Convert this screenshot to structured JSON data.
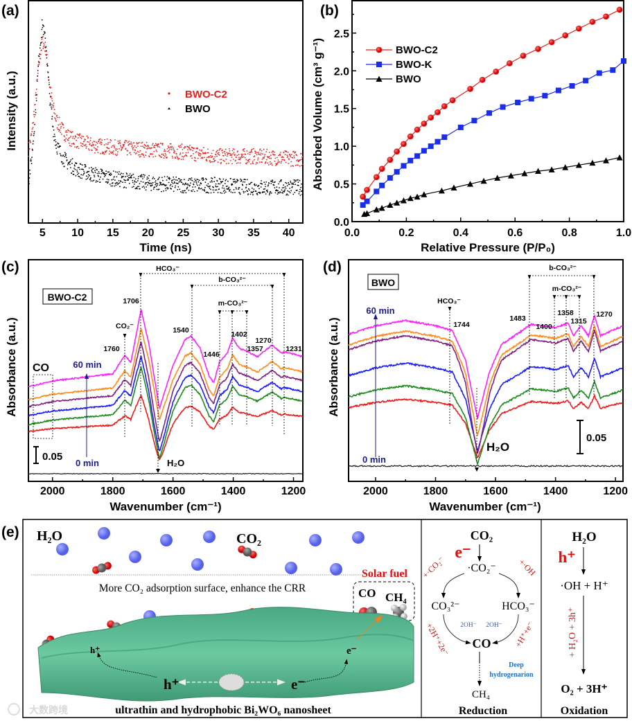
{
  "panels": {
    "a": "(a)",
    "b": "(b)",
    "c": "(c)",
    "d": "(d)",
    "e": "(e)"
  },
  "chart_data": [
    {
      "id": "a",
      "type": "scatter",
      "xlabel": "Time (ns)",
      "ylabel": "Intensity (a.u.)",
      "xlim": [
        3,
        42
      ],
      "ylim": [
        0,
        1
      ],
      "xticks": [
        5,
        10,
        15,
        20,
        25,
        30,
        35,
        40
      ],
      "legend_position": "center-right",
      "x": [
        3,
        3.5,
        4,
        4.5,
        5,
        5.5,
        6,
        6.5,
        7,
        8,
        9,
        10,
        12,
        15,
        20,
        25,
        30,
        35,
        40,
        42
      ],
      "series": [
        {
          "name": "BWO-C2",
          "color": "#e8201e",
          "values": [
            0.33,
            0.4,
            0.55,
            0.72,
            0.82,
            0.78,
            0.62,
            0.52,
            0.46,
            0.41,
            0.38,
            0.37,
            0.35,
            0.34,
            0.33,
            0.32,
            0.3,
            0.3,
            0.29,
            0.29
          ]
        },
        {
          "name": "BWO",
          "color": "#000000",
          "values": [
            0.18,
            0.3,
            0.5,
            0.75,
            0.9,
            0.8,
            0.58,
            0.43,
            0.35,
            0.29,
            0.26,
            0.24,
            0.22,
            0.2,
            0.18,
            0.17,
            0.17,
            0.16,
            0.16,
            0.16
          ]
        }
      ]
    },
    {
      "id": "b",
      "type": "line",
      "xlabel": "Relative Pressure (P/P₀)",
      "ylabel": "Absorbed Volume (cm³ g⁻¹)",
      "xlim": [
        0,
        1.0
      ],
      "ylim": [
        0,
        2.93
      ],
      "xticks": [
        "0.0",
        "0.2",
        "0.4",
        "0.6",
        "0.8",
        "1.0"
      ],
      "yticks": [
        "0.0",
        "0.5",
        "1.0",
        "1.5",
        "2.0",
        "2.5"
      ],
      "legend_position": "top-left",
      "series": [
        {
          "name": "BWO-C2",
          "color": "#e8201e",
          "marker": "circle",
          "x": [
            0.04,
            0.055,
            0.09,
            0.11,
            0.14,
            0.165,
            0.19,
            0.215,
            0.24,
            0.265,
            0.29,
            0.315,
            0.34,
            0.37,
            0.435,
            0.48,
            0.53,
            0.58,
            0.63,
            0.685,
            0.735,
            0.785,
            0.835,
            0.885,
            0.935,
            0.985
          ],
          "y": [
            0.33,
            0.42,
            0.59,
            0.7,
            0.82,
            0.93,
            1.03,
            1.13,
            1.22,
            1.3,
            1.38,
            1.45,
            1.53,
            1.61,
            1.76,
            1.88,
            1.99,
            2.1,
            2.2,
            2.29,
            2.38,
            2.47,
            2.56,
            2.65,
            2.72,
            2.81
          ]
        },
        {
          "name": "BWO-K",
          "color": "#1a2ee8",
          "marker": "square",
          "x": [
            0.04,
            0.055,
            0.09,
            0.11,
            0.14,
            0.165,
            0.19,
            0.215,
            0.24,
            0.265,
            0.29,
            0.315,
            0.34,
            0.4,
            0.45,
            0.505,
            0.555,
            0.61,
            0.66,
            0.71,
            0.76,
            0.81,
            0.86,
            0.91,
            0.96,
            1.0
          ],
          "y": [
            0.22,
            0.27,
            0.4,
            0.48,
            0.58,
            0.66,
            0.74,
            0.81,
            0.87,
            0.94,
            1.0,
            1.06,
            1.12,
            1.25,
            1.34,
            1.44,
            1.52,
            1.58,
            1.63,
            1.67,
            1.74,
            1.8,
            1.87,
            1.97,
            2.01,
            2.13
          ]
        },
        {
          "name": "BWO",
          "color": "#000000",
          "marker": "triangle",
          "x": [
            0.045,
            0.055,
            0.09,
            0.11,
            0.14,
            0.165,
            0.19,
            0.215,
            0.24,
            0.265,
            0.33,
            0.375,
            0.435,
            0.485,
            0.535,
            0.585,
            0.635,
            0.685,
            0.735,
            0.785,
            0.835,
            0.885,
            0.935,
            0.985
          ],
          "y": [
            0.1,
            0.11,
            0.16,
            0.18,
            0.22,
            0.25,
            0.28,
            0.31,
            0.33,
            0.36,
            0.41,
            0.45,
            0.5,
            0.54,
            0.58,
            0.61,
            0.64,
            0.67,
            0.69,
            0.72,
            0.75,
            0.78,
            0.81,
            0.85
          ]
        }
      ]
    },
    {
      "id": "c",
      "type": "line",
      "xlabel": "Wavenumber (cm⁻¹)",
      "ylabel": "Absorbance (a.u.)",
      "xlim": [
        2080,
        1169
      ],
      "ylim": [
        0,
        0.667
      ],
      "xticks": [
        "2000",
        "1800",
        "1600",
        "1400",
        "1200"
      ],
      "sample": "BWO-C2",
      "template": {
        "w": [
          2080,
          2000,
          1800,
          1760,
          1740,
          1706,
          1680,
          1645,
          1600,
          1560,
          1540,
          1510,
          1480,
          1465,
          1446,
          1420,
          1402,
          1380,
          1357,
          1320,
          1270,
          1240,
          1231,
          1169
        ],
        "a": [
          0.285,
          0.302,
          0.323,
          0.379,
          0.358,
          0.517,
          0.413,
          0.219,
          0.35,
          0.427,
          0.4375,
          0.4,
          0.317,
          0.296,
          0.358,
          0.385,
          0.431,
          0.4,
          0.392,
          0.375,
          0.41,
          0.385,
          0.39,
          0.375
        ]
      },
      "dip_center": 1650,
      "series": [
        {
          "time": "60 min",
          "color": "#ff1fff",
          "base": 0.285,
          "scale": 1.0,
          "dip": 0
        },
        {
          "time": "",
          "color": "#ff8c1a",
          "base": 0.246,
          "scale": 0.92,
          "dip": 0
        },
        {
          "time": "",
          "color": "#7f1f7f",
          "base": 0.225,
          "scale": 0.87,
          "dip": -0.049
        },
        {
          "time": "",
          "color": "#1a1aff",
          "base": 0.198,
          "scale": 0.8,
          "dip": -0.057
        },
        {
          "time": "",
          "color": "#1a8a1a",
          "base": 0.171,
          "scale": 0.78,
          "dip": -0.051
        },
        {
          "time": "0 min",
          "color": "#ee1a1a",
          "base": 0.15,
          "scale": 0.5,
          "dip": -0.054
        }
      ],
      "reference_level": 0.023,
      "annotations": {
        "sample_box": "BWO-C2",
        "co": "CO",
        "hco3": "HCO₃⁻",
        "bco3": "b-CO₃²⁻",
        "mco3": "m-CO₃²⁻",
        "co2": "CO₂⁻",
        "p1706": "1706",
        "p1760": "1760",
        "p1540": "1540",
        "p1446": "1446",
        "p1402": "1402",
        "p1357": "1357",
        "p1270": "1270",
        "p1231": "1231",
        "t60": "60 min",
        "t0": "0 min",
        "scale": "0.05",
        "h2o": "H₂O"
      }
    },
    {
      "id": "d",
      "type": "line",
      "xlabel": "Wavenumber (cm⁻¹)",
      "ylabel": "Absorbance (a.u.)",
      "xlim": [
        2090,
        1175
      ],
      "ylim": [
        0,
        0.333
      ],
      "xticks": [
        "2000",
        "1800",
        "1600",
        "1400",
        "1200"
      ],
      "sample": "BWO",
      "template": {
        "w": [
          2090,
          2000,
          1900,
          1800,
          1744,
          1700,
          1660,
          1620,
          1580,
          1520,
          1483,
          1440,
          1400,
          1358,
          1340,
          1315,
          1290,
          1270,
          1250,
          1175
        ],
        "a": [
          0.221,
          0.234,
          0.242,
          0.234,
          0.227,
          0.182,
          0.095,
          0.165,
          0.206,
          0.224,
          0.236,
          0.234,
          0.231,
          0.238,
          0.219,
          0.234,
          0.219,
          0.25,
          0.219,
          0.234
        ]
      },
      "dip_center": 1660,
      "series": [
        {
          "time": "60 min",
          "color": "#ff1fff",
          "base": 0.221,
          "scale": 1.0,
          "dip": 0
        },
        {
          "time": "",
          "color": "#ff8c1a",
          "base": 0.205,
          "scale": 1.0,
          "dip": -0.01
        },
        {
          "time": "",
          "color": "#7f1f7f",
          "base": 0.198,
          "scale": 1.0,
          "dip": -0.03
        },
        {
          "time": "",
          "color": "#1a1aff",
          "base": 0.159,
          "scale": 0.9,
          "dip": 0
        },
        {
          "time": "",
          "color": "#1a8a1a",
          "base": 0.127,
          "scale": 0.8,
          "dip": 0
        },
        {
          "time": "0 min",
          "color": "#ee1a1a",
          "base": 0.111,
          "scale": 0.6,
          "dip": 0
        }
      ],
      "reference_level": 0.023,
      "annotations": {
        "sample_box": "BWO",
        "hco3": "HCO₃⁻",
        "bco3": "b-CO₃²⁻",
        "mco3": "m-CO₃²⁻",
        "p1744": "1744",
        "p1483": "1483",
        "p1400": "1400",
        "p1358": "1358",
        "p1315": "1315",
        "p1270": "1270",
        "t60": "60 min",
        "t0": "0 min",
        "scale": "0.05",
        "h2o": "H₂O"
      }
    }
  ],
  "scheme": {
    "h2o": "H₂O",
    "co2": "CO₂",
    "adsorption": "More CO₂ adsorption surface, enhance the CRR",
    "solar_fuel": "Solar fuel",
    "fuel_co": "CO",
    "fuel_ch4": "CH₄",
    "h_plus": "h⁺",
    "e_minus": "e⁻",
    "h_site": "h⁺",
    "e_site": "e⁻",
    "nanosheet": "ultrathin and hydrophobic Bi₂WO₆ nanosheet",
    "watermark": "大数跨境",
    "reduction": {
      "co2": "CO₂",
      "e": "e⁻",
      "radical": "·CO₂⁻",
      "add_co2": "+·CO₂⁻",
      "add_oh": "+·OH",
      "co3": "CO₃²⁻",
      "hco3": "HCO₃⁻",
      "oh_left": "2OH⁻",
      "oh_right": "2OH⁻",
      "add_2h": "+2H⁺+2e⁻",
      "add_h": "+H⁺+e⁻",
      "co": "CO",
      "deep1": "Deep",
      "deep2": "hydrogenarion",
      "ch4": "CH₄",
      "title": "Reduction"
    },
    "oxidation": {
      "h2o": "H₂O",
      "h": "h⁺",
      "oh": "·OH + H⁺",
      "add": "+ H₂O + 3h⁺",
      "o2": "O₂ + 3H⁺",
      "title": "Oxidation"
    }
  }
}
